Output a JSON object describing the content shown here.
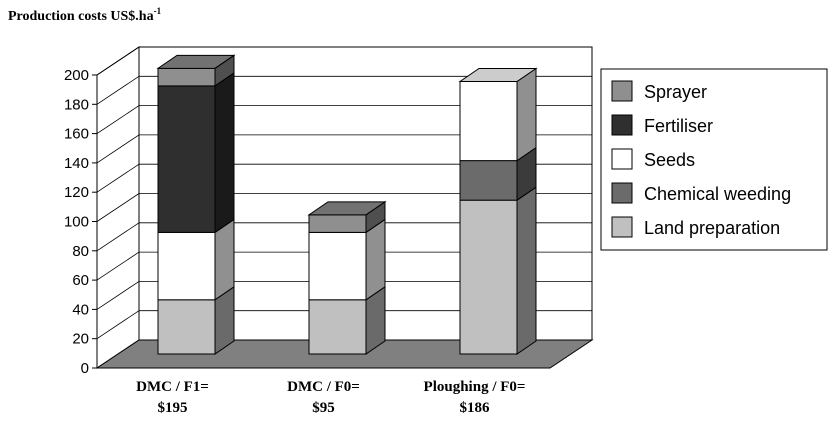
{
  "chart_data": {
    "type": "bar",
    "stacked": true,
    "three_d": true,
    "title": "Production costs US$.ha",
    "title_superscript": "-1",
    "categories": [
      [
        "DMC / F1=",
        "$195"
      ],
      [
        "DMC / F0=",
        "$95"
      ],
      [
        "Ploughing / F0=",
        "$186"
      ]
    ],
    "ylim": [
      0,
      200
    ],
    "yticks": [
      "0",
      "20",
      "40",
      "60",
      "80",
      "100",
      "120",
      "140",
      "160",
      "180",
      "200"
    ],
    "grid": true,
    "legend_position": "right",
    "series": [
      {
        "name": "Land preparation",
        "values": [
          37,
          37,
          105
        ],
        "color": "#c0c0c0"
      },
      {
        "name": "Chemical weeding",
        "values": [
          0,
          0,
          27
        ],
        "color": "#6b6b6b"
      },
      {
        "name": "Seeds",
        "values": [
          46,
          46,
          54
        ],
        "color": "#ffffff"
      },
      {
        "name": "Fertiliser",
        "values": [
          100,
          0,
          0
        ],
        "color": "#2f2f2f"
      },
      {
        "name": "Sprayer",
        "values": [
          12,
          12,
          0
        ],
        "color": "#8f8f8f"
      }
    ],
    "legend_order": [
      "Sprayer",
      "Fertiliser",
      "Seeds",
      "Chemical weeding",
      "Land preparation"
    ]
  }
}
